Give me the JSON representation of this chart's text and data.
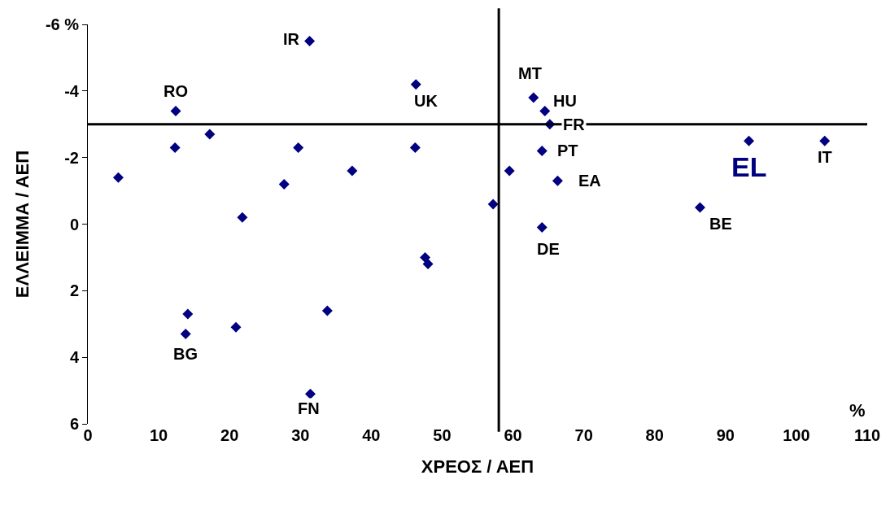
{
  "chart_data": {
    "type": "scatter",
    "xlabel": "ΧΡΕΟΣ / ΑΕΠ",
    "ylabel": "ΕΛΛΕΙΜΜΑ / ΑΕΠ",
    "series": [
      {
        "color": "#000080",
        "x": [
          4.3,
          12.4,
          12.3,
          17.2,
          21.8,
          27.7,
          29.7,
          31.3,
          37.3,
          46.2,
          46.3,
          47.6,
          48.0,
          14.1,
          13.8,
          20.9,
          33.8,
          31.4,
          62.9,
          64.5,
          65.2,
          64.1,
          59.5,
          66.3,
          57.2,
          64.1,
          86.4,
          93.3,
          104.0
        ],
        "values": [
          -1.4,
          -3.4,
          -2.3,
          -2.7,
          -0.2,
          -1.2,
          -2.3,
          -5.5,
          -1.6,
          -2.3,
          -4.2,
          1.0,
          1.2,
          2.7,
          3.3,
          3.1,
          2.6,
          5.1,
          -3.8,
          -3.4,
          -3.0,
          -2.2,
          -1.6,
          -1.3,
          -0.6,
          0.1,
          -0.5,
          -2.5,
          -2.5
        ],
        "value_labels": [
          null,
          "RO",
          null,
          null,
          null,
          null,
          null,
          "IR",
          null,
          null,
          "UK",
          null,
          null,
          null,
          "BG",
          null,
          null,
          "FN",
          "MT",
          "HU",
          "FR",
          "PT",
          null,
          "EA",
          null,
          "DE",
          "BE",
          "EL",
          "IT"
        ]
      }
    ],
    "marker": "diamond",
    "xlim": [
      0,
      110
    ],
    "xticks": [
      0,
      10,
      20,
      30,
      40,
      50,
      60,
      70,
      80,
      90,
      100,
      110
    ],
    "ylim": [
      6,
      -6
    ],
    "yticks": [
      {
        "value": -6,
        "label": "-6 %"
      },
      -4,
      -2,
      0,
      2,
      4,
      6
    ],
    "ref_lines": [
      {
        "axis": "x",
        "value": 58,
        "color": "#000000"
      },
      {
        "axis": "y",
        "value": -3,
        "color": "#000000"
      }
    ],
    "annotations": [
      "%"
    ]
  }
}
